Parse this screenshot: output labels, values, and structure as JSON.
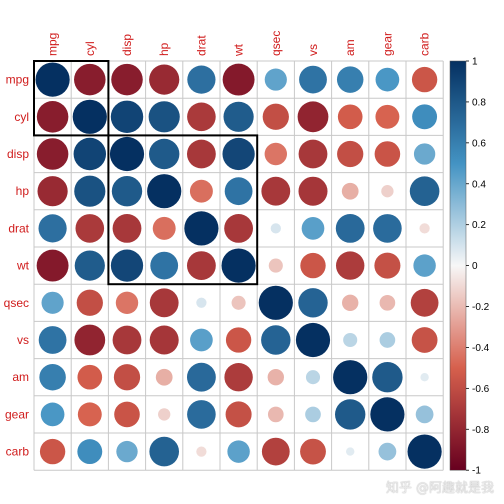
{
  "chart_data": {
    "type": "heatmap",
    "style": "circle correlation matrix",
    "variables": [
      "mpg",
      "cyl",
      "disp",
      "hp",
      "drat",
      "wt",
      "qsec",
      "vs",
      "am",
      "gear",
      "carb"
    ],
    "matrix": [
      [
        1.0,
        -0.85,
        -0.85,
        -0.78,
        0.68,
        -0.87,
        0.42,
        0.66,
        0.6,
        0.48,
        -0.55
      ],
      [
        -0.85,
        1.0,
        0.9,
        0.83,
        -0.7,
        0.78,
        -0.59,
        -0.81,
        -0.52,
        -0.49,
        0.53
      ],
      [
        -0.85,
        0.9,
        1.0,
        0.79,
        -0.71,
        0.89,
        -0.43,
        -0.71,
        -0.59,
        -0.56,
        0.39
      ],
      [
        -0.78,
        0.83,
        0.79,
        1.0,
        -0.45,
        0.66,
        -0.71,
        -0.72,
        -0.24,
        -0.13,
        0.75
      ],
      [
        0.68,
        -0.7,
        -0.71,
        -0.45,
        1.0,
        -0.71,
        0.09,
        0.44,
        0.71,
        0.7,
        -0.09
      ],
      [
        -0.87,
        0.78,
        0.89,
        0.66,
        -0.71,
        1.0,
        -0.17,
        -0.55,
        -0.69,
        -0.58,
        0.43
      ],
      [
        0.42,
        -0.59,
        -0.43,
        -0.71,
        0.09,
        -0.17,
        1.0,
        0.74,
        -0.23,
        -0.21,
        -0.66
      ],
      [
        0.66,
        -0.81,
        -0.71,
        -0.72,
        0.44,
        -0.55,
        0.74,
        1.0,
        0.17,
        0.21,
        -0.57
      ],
      [
        0.6,
        -0.52,
        -0.59,
        -0.24,
        0.71,
        -0.69,
        -0.23,
        0.17,
        1.0,
        0.79,
        0.06
      ],
      [
        0.48,
        -0.49,
        -0.56,
        -0.13,
        0.7,
        -0.58,
        -0.21,
        0.21,
        0.79,
        1.0,
        0.27
      ],
      [
        -0.55,
        0.53,
        0.39,
        0.75,
        -0.09,
        0.43,
        -0.66,
        -0.57,
        0.06,
        0.27,
        1.0
      ]
    ],
    "clusters": [
      [
        0,
        1
      ],
      [
        2,
        5
      ]
    ],
    "colorbar": {
      "range": [
        -1,
        1
      ],
      "ticks": [
        "-1",
        "-0.8",
        "-0.6",
        "-0.4",
        "-0.2",
        "0",
        "0.2",
        "0.4",
        "0.6",
        "0.8",
        "1"
      ],
      "placement": "right"
    },
    "colors": {
      "negative_end": "#67001f",
      "negative_mid": "#d6604d",
      "neutral": "#f7f7f7",
      "positive_mid": "#4393c3",
      "positive_end": "#053061",
      "label": "#d01c1c",
      "grid": "#c8c8c8",
      "cluster_box": "#000000"
    }
  },
  "watermark": "知乎 @阿趣就是我"
}
